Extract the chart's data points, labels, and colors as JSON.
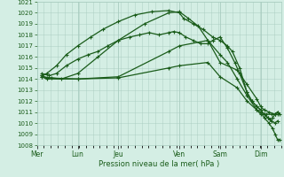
{
  "title": "",
  "xlabel": "Pression niveau de la mer( hPa )",
  "bg_color": "#d4eee4",
  "grid_color": "#a8ccc0",
  "line_color": "#1a5c1a",
  "ylim": [
    1008,
    1021
  ],
  "yticks": [
    1008,
    1009,
    1010,
    1011,
    1012,
    1013,
    1014,
    1015,
    1016,
    1017,
    1018,
    1019,
    1020,
    1021
  ],
  "day_labels": [
    "Mer",
    "Lun",
    "Jeu",
    "Ven",
    "Sam",
    "Dim"
  ],
  "day_positions": [
    0.0,
    0.167,
    0.333,
    0.583,
    0.75,
    0.917
  ],
  "xlim": [
    0.0,
    1.0
  ],
  "series": [
    {
      "x": [
        0.02,
        0.04,
        0.08,
        0.12,
        0.167,
        0.22,
        0.27,
        0.333,
        0.4,
        0.47,
        0.54,
        0.583,
        0.6,
        0.64,
        0.68,
        0.72,
        0.75,
        0.78,
        0.8,
        0.83,
        0.86,
        0.88,
        0.9,
        0.916,
        0.93,
        0.945,
        0.96,
        0.975,
        0.985
      ],
      "y": [
        1014.3,
        1014.5,
        1015.2,
        1016.2,
        1017.0,
        1017.8,
        1018.5,
        1019.2,
        1019.8,
        1020.1,
        1020.2,
        1020.0,
        1019.5,
        1019.0,
        1018.5,
        1017.8,
        1017.5,
        1017.0,
        1016.5,
        1015.0,
        1012.8,
        1012.0,
        1011.5,
        1011.2,
        1010.8,
        1010.5,
        1010.2,
        1010.0,
        1010.2
      ]
    },
    {
      "x": [
        0.02,
        0.06,
        0.1,
        0.167,
        0.25,
        0.333,
        0.44,
        0.54,
        0.583,
        0.62,
        0.66,
        0.7,
        0.75,
        0.78,
        0.82,
        0.86,
        0.9,
        0.916,
        0.93,
        0.95,
        0.965,
        0.975,
        0.985,
        0.995
      ],
      "y": [
        1014.2,
        1014.1,
        1014.0,
        1014.5,
        1016.0,
        1017.5,
        1019.0,
        1020.0,
        1020.1,
        1019.5,
        1018.8,
        1017.5,
        1016.2,
        1015.5,
        1014.0,
        1012.5,
        1011.2,
        1011.0,
        1010.5,
        1010.0,
        1009.5,
        1009.0,
        1008.5,
        1008.5
      ]
    },
    {
      "x": [
        0.02,
        0.04,
        0.167,
        0.333,
        0.54,
        0.583,
        0.7,
        0.75,
        0.82,
        0.86,
        0.9,
        0.916,
        0.93,
        0.95,
        0.975,
        0.985
      ],
      "y": [
        1014.2,
        1014.0,
        1014.0,
        1014.2,
        1016.5,
        1017.0,
        1017.5,
        1015.5,
        1014.8,
        1013.5,
        1012.2,
        1011.5,
        1011.2,
        1011.0,
        1010.8,
        1010.8
      ]
    },
    {
      "x": [
        0.02,
        0.04,
        0.167,
        0.333,
        0.54,
        0.583,
        0.7,
        0.75,
        0.82,
        0.86,
        0.9,
        0.916,
        0.94,
        0.96,
        0.975,
        0.985
      ],
      "y": [
        1014.3,
        1014.1,
        1014.0,
        1014.1,
        1015.0,
        1015.2,
        1015.5,
        1014.2,
        1013.2,
        1012.0,
        1011.2,
        1010.8,
        1010.8,
        1010.8,
        1010.8,
        1011.0
      ]
    },
    {
      "x": [
        0.02,
        0.05,
        0.08,
        0.12,
        0.167,
        0.21,
        0.25,
        0.29,
        0.333,
        0.38,
        0.42,
        0.46,
        0.5,
        0.54,
        0.56,
        0.583,
        0.61,
        0.64,
        0.67,
        0.7,
        0.72,
        0.75,
        0.78,
        0.81,
        0.83,
        0.86,
        0.88,
        0.9,
        0.916,
        0.93,
        0.945,
        0.955,
        0.965,
        0.975,
        0.985,
        0.993
      ],
      "y": [
        1014.5,
        1014.3,
        1014.5,
        1015.2,
        1015.8,
        1016.2,
        1016.5,
        1017.0,
        1017.5,
        1017.8,
        1018.0,
        1018.2,
        1018.0,
        1018.2,
        1018.3,
        1018.2,
        1017.8,
        1017.5,
        1017.2,
        1017.2,
        1017.5,
        1017.8,
        1016.8,
        1015.5,
        1014.5,
        1012.8,
        1012.0,
        1011.5,
        1011.2,
        1010.8,
        1010.5,
        1010.3,
        1010.5,
        1010.8,
        1011.0,
        1010.8
      ]
    }
  ]
}
